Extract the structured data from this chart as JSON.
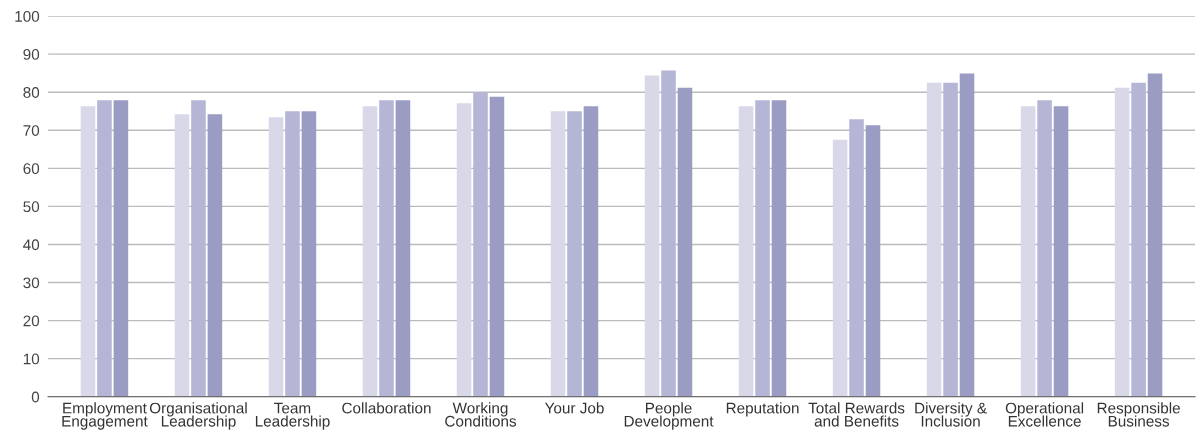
{
  "chart_data": {
    "type": "bar",
    "categories": [
      "Employment\nEngagement",
      "Organisational\nLeadership",
      "Team\nLeadership",
      "Collaboration",
      "Working\nConditions",
      "Your Job",
      "People\nDevelopment",
      "Reputation",
      "Total Rewards\nand Benefits",
      "Diversity &\nInclusion",
      "Operational\nExcellence",
      "Responsible\nBusiness"
    ],
    "series": [
      {
        "color": "#d8d8e8",
        "values": [
          76.3,
          74.2,
          73.4,
          76.3,
          77.1,
          75.0,
          84.4,
          76.3,
          67.5,
          82.5,
          76.3,
          81.2
        ]
      },
      {
        "color": "#b5b6d5",
        "values": [
          77.9,
          77.9,
          75.0,
          77.9,
          80.0,
          75.0,
          85.7,
          77.9,
          72.9,
          82.5,
          77.9,
          82.5
        ]
      },
      {
        "color": "#9a9cc4",
        "values": [
          77.9,
          74.2,
          75.0,
          77.9,
          78.8,
          76.3,
          81.2,
          77.9,
          71.3,
          84.9,
          76.3,
          84.9
        ]
      }
    ],
    "ylim": [
      0,
      100
    ],
    "yticks": [
      0,
      10,
      20,
      30,
      40,
      50,
      60,
      70,
      80,
      90,
      100
    ],
    "grid": "y",
    "legend": false
  }
}
